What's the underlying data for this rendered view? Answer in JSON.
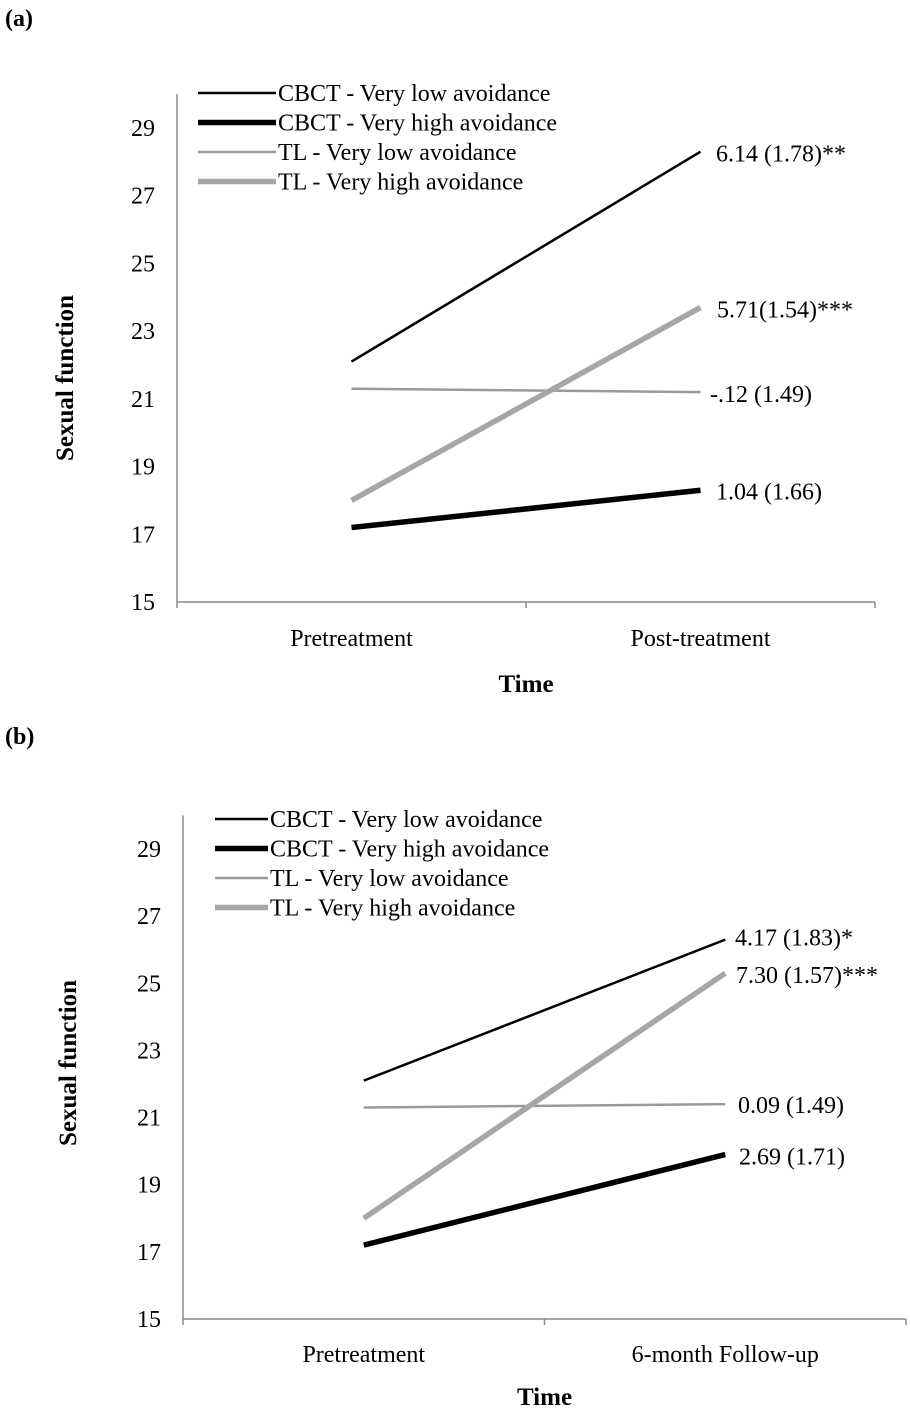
{
  "chart_data": [
    {
      "type": "line",
      "panel_label": "(a)",
      "xlabel": "Time",
      "ylabel": "Sexual function",
      "categories": [
        "Pretreatment",
        "Post-treatment"
      ],
      "ylim": [
        15,
        30
      ],
      "yticks": [
        15,
        17,
        19,
        21,
        23,
        25,
        27,
        29
      ],
      "grid": false,
      "legend_position": "top-left",
      "series": [
        {
          "name": "CBCT - Very low avoidance",
          "values": [
            22.1,
            28.3
          ],
          "color": "#000000",
          "weight": "thin",
          "end_label": "6.14 (1.78)**"
        },
        {
          "name": "CBCT - Very high avoidance",
          "values": [
            17.2,
            18.3
          ],
          "color": "#000000",
          "weight": "thick",
          "end_label": "1.04 (1.66)"
        },
        {
          "name": "TL - Very low avoidance",
          "values": [
            21.3,
            21.2
          ],
          "color": "#9a9a9a",
          "weight": "thin",
          "end_label": "-.12 (1.49)"
        },
        {
          "name": "TL - Very high avoidance",
          "values": [
            18.0,
            23.7
          ],
          "color": "#a6a6a6",
          "weight": "thick",
          "end_label": "5.71(1.54)***"
        }
      ]
    },
    {
      "type": "line",
      "panel_label": "(b)",
      "xlabel": "Time",
      "ylabel": "Sexual function",
      "categories": [
        "Pretreatment",
        "6-month Follow-up"
      ],
      "ylim": [
        15,
        30
      ],
      "yticks": [
        15,
        17,
        19,
        21,
        23,
        25,
        27,
        29
      ],
      "grid": false,
      "legend_position": "top-left",
      "series": [
        {
          "name": "CBCT - Very low avoidance",
          "values": [
            22.1,
            26.3
          ],
          "color": "#000000",
          "weight": "thin",
          "end_label": "4.17 (1.83)*"
        },
        {
          "name": "CBCT - Very high avoidance",
          "values": [
            17.2,
            19.9
          ],
          "color": "#000000",
          "weight": "thick",
          "end_label": "2.69 (1.71)"
        },
        {
          "name": "TL - Very low avoidance",
          "values": [
            21.3,
            21.4
          ],
          "color": "#9a9a9a",
          "weight": "thin",
          "end_label": "0.09 (1.49)"
        },
        {
          "name": "TL - Very high avoidance",
          "values": [
            18.0,
            25.3
          ],
          "color": "#a6a6a6",
          "weight": "thick",
          "end_label": "7.30 (1.57)***"
        }
      ]
    }
  ]
}
